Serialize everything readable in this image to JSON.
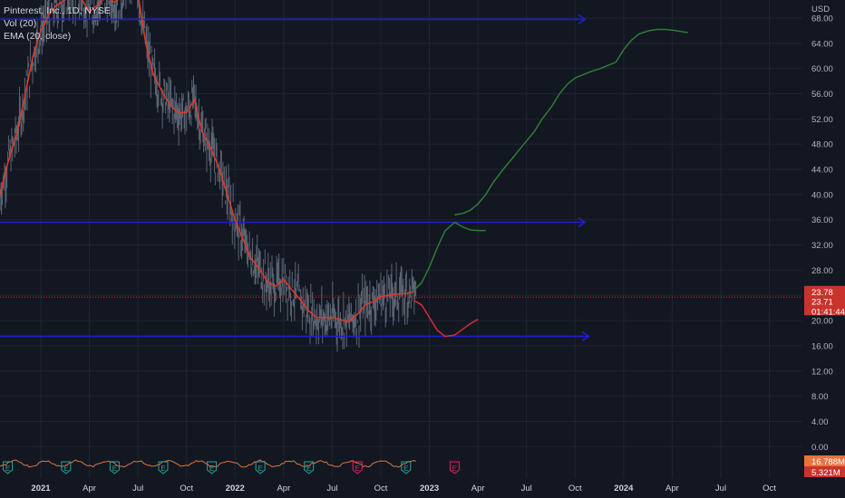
{
  "legend": {
    "title": "Pinterest, Inc., 1D, NYSE",
    "vol": "Vol (20)",
    "ema": "EMA (20, close)"
  },
  "colors": {
    "background": "#131722",
    "grid": "#1f2433",
    "hline": "#1e1ed6",
    "ema": "#e03a28",
    "projection_up": "#2e7d32",
    "projection_down": "#d32f2f",
    "volume": "#e0743a",
    "candles": "#5c6574",
    "earnings": "#26a69a",
    "earnings_future": "#e91e63",
    "price_tag": "#c6342c",
    "volume_tag": "#e8733f"
  },
  "chart_data": {
    "type": "line",
    "title": "Pinterest, Inc., 1D, NYSE",
    "y_axis": {
      "currency": "USD",
      "ticks": [
        "0.00",
        "4.00",
        "8.00",
        "12.00",
        "16.00",
        "20.00",
        "24.00",
        "28.00",
        "32.00",
        "36.00",
        "40.00",
        "44.00",
        "48.00",
        "52.00",
        "56.00",
        "60.00",
        "64.00",
        "68.00"
      ],
      "tick_values": [
        0,
        4,
        8,
        12,
        16,
        20,
        24,
        28,
        32,
        36,
        40,
        44,
        48,
        52,
        56,
        60,
        64,
        68
      ],
      "range": [
        -1.5,
        69.5
      ]
    },
    "x_axis": {
      "labels": [
        "2021",
        "Apr",
        "Jul",
        "Oct",
        "2022",
        "Apr",
        "Jul",
        "Oct",
        "2023",
        "Apr",
        "Jul",
        "Oct",
        "2024",
        "Apr",
        "Jul",
        "Oct"
      ],
      "label_dates": [
        2021.0,
        2021.25,
        2021.5,
        2021.75,
        2022.0,
        2022.25,
        2022.5,
        2022.75,
        2023.0,
        2023.25,
        2023.5,
        2023.75,
        2024.0,
        2024.25,
        2024.5,
        2024.75
      ],
      "range": [
        2020.79,
        2024.92
      ]
    },
    "horizontal_levels": [
      {
        "value": 67.8,
        "x_start": 2020.79,
        "x_end": 2023.8
      },
      {
        "value": 35.6,
        "x_start": 2020.79,
        "x_end": 2023.8
      },
      {
        "value": 17.5,
        "x_start": 2020.79,
        "x_end": 2023.82
      }
    ],
    "ema_series": {
      "name": "EMA (20, close)",
      "x": [
        2020.79,
        2020.83,
        2020.88,
        2020.92,
        2020.96,
        2021.0,
        2021.04,
        2021.08,
        2021.13,
        2021.17,
        2021.21,
        2021.25,
        2021.29,
        2021.33,
        2021.38,
        2021.42,
        2021.46,
        2021.5,
        2021.54,
        2021.58,
        2021.63,
        2021.67,
        2021.71,
        2021.75,
        2021.79,
        2021.83,
        2021.88,
        2021.92,
        2021.96,
        2022.0,
        2022.04,
        2022.08,
        2022.13,
        2022.17,
        2022.21,
        2022.25,
        2022.29,
        2022.33,
        2022.38,
        2022.42,
        2022.46,
        2022.5,
        2022.54,
        2022.58,
        2022.63,
        2022.67,
        2022.71,
        2022.75,
        2022.79,
        2022.83,
        2022.88,
        2022.92
      ],
      "values": [
        40.0,
        45.0,
        50.0,
        56.0,
        62.0,
        66.0,
        68.5,
        70.0,
        71.0,
        72.0,
        71.0,
        69.0,
        70.0,
        71.5,
        70.5,
        71.5,
        75.0,
        72.0,
        64.0,
        59.0,
        56.0,
        54.0,
        53.0,
        53.0,
        55.0,
        50.0,
        47.0,
        44.0,
        40.0,
        36.0,
        33.0,
        30.0,
        28.0,
        26.0,
        25.5,
        26.5,
        25.0,
        23.5,
        21.5,
        20.5,
        20.5,
        20.5,
        20.2,
        19.8,
        21.0,
        22.5,
        23.0,
        23.8,
        24.0,
        24.2,
        24.3,
        24.6
      ]
    },
    "projection_up": {
      "segments": [
        {
          "x": [
            2022.92,
            2022.96,
            2023.0,
            2023.04,
            2023.08,
            2023.13,
            2023.17,
            2023.21,
            2023.25,
            2023.29
          ],
          "values": [
            24.8,
            26.0,
            28.5,
            31.5,
            34.2,
            35.6,
            34.9,
            34.4,
            34.3,
            34.3
          ]
        },
        {
          "x": [
            2023.13,
            2023.17,
            2023.21,
            2023.25,
            2023.29,
            2023.33,
            2023.38,
            2023.42,
            2023.46,
            2023.5,
            2023.54,
            2023.58,
            2023.63,
            2023.67,
            2023.71,
            2023.75,
            2023.79,
            2023.83,
            2023.88,
            2023.92,
            2023.96,
            2024.0,
            2024.04,
            2024.08,
            2024.13,
            2024.17,
            2024.21,
            2024.25,
            2024.29,
            2024.33
          ],
          "values": [
            36.8,
            37.0,
            37.5,
            38.5,
            40.0,
            42.0,
            44.0,
            45.5,
            47.0,
            48.5,
            50.0,
            52.0,
            54.0,
            56.0,
            57.5,
            58.5,
            59.0,
            59.5,
            60.0,
            60.5,
            61.0,
            63.0,
            64.5,
            65.5,
            66.0,
            66.2,
            66.2,
            66.1,
            65.9,
            65.7
          ]
        }
      ]
    },
    "projection_down": {
      "x": [
        2022.92,
        2022.96,
        2023.0,
        2023.04,
        2023.08,
        2023.13,
        2023.17,
        2023.21,
        2023.25
      ],
      "values": [
        23.2,
        22.5,
        20.5,
        18.5,
        17.5,
        17.7,
        18.6,
        19.5,
        20.2
      ]
    },
    "current_price": {
      "value": 23.71,
      "label": "23.71",
      "countdown": "01:41:44"
    },
    "prev_close": {
      "value": 23.78,
      "label": "23.78"
    },
    "volume": {
      "last_label": "16.788M",
      "avg_label": "5.321M"
    },
    "earnings": {
      "marker": "E",
      "dates_past": [
        2020.83,
        2021.13,
        2021.38,
        2021.63,
        2021.88,
        2022.13,
        2022.38,
        2022.88
      ],
      "dates_future": [
        2023.13
      ],
      "negative_past": [
        2022.63
      ]
    }
  }
}
